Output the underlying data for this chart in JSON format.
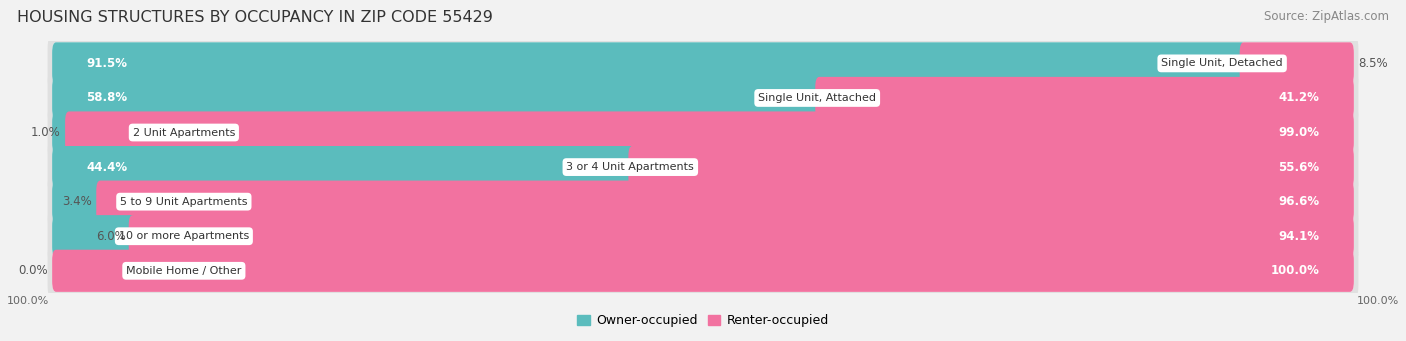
{
  "title": "HOUSING STRUCTURES BY OCCUPANCY IN ZIP CODE 55429",
  "source": "Source: ZipAtlas.com",
  "categories": [
    "Single Unit, Detached",
    "Single Unit, Attached",
    "2 Unit Apartments",
    "3 or 4 Unit Apartments",
    "5 to 9 Unit Apartments",
    "10 or more Apartments",
    "Mobile Home / Other"
  ],
  "owner_pct": [
    91.5,
    58.8,
    1.0,
    44.4,
    3.4,
    6.0,
    0.0
  ],
  "renter_pct": [
    8.5,
    41.2,
    99.0,
    55.6,
    96.6,
    94.1,
    100.0
  ],
  "owner_color": "#5bbcbd",
  "renter_color": "#f272a0",
  "bg_color": "#f2f2f2",
  "row_bg_color": "#e0e0e0",
  "bar_inner_bg": "#ffffff",
  "title_fontsize": 11.5,
  "source_fontsize": 8.5,
  "pct_label_fontsize": 8.5,
  "cat_fontsize": 8,
  "legend_fontsize": 9
}
